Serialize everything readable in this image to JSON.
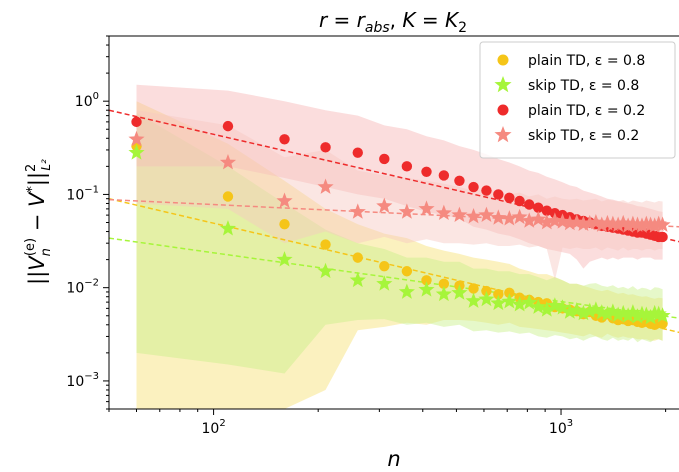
{
  "chart_data": {
    "type": "scatter",
    "title": "r = r_abs, K = K_2",
    "title_parts": {
      "lhs": "r",
      "eq1": " = ",
      "rhs_base": "r",
      "rhs_sub": "abs",
      "sep": ", ",
      "lhs2": "K",
      "eq2": " = ",
      "rhs2_base": "K",
      "rhs2_sub": "2"
    },
    "xlabel": "n",
    "ylabel_parts": {
      "pre": "||",
      "base": "V",
      "sub": "n",
      "sup": "(e)",
      "mid": " − ",
      "v": "V",
      "star": "*",
      "post": "||",
      "norm_sup": "2",
      "norm_sub": "L²"
    },
    "x_scale": "log",
    "y_scale": "log",
    "xlim": [
      50,
      2200
    ],
    "ylim": [
      0.0005,
      5
    ],
    "x_ticks": [
      {
        "value": 100,
        "base": "10",
        "exp": "2"
      },
      {
        "value": 1000,
        "base": "10",
        "exp": "3"
      }
    ],
    "y_ticks": [
      {
        "value": 0.001,
        "base": "10",
        "exp": "−3"
      },
      {
        "value": 0.01,
        "base": "10",
        "exp": "−2"
      },
      {
        "value": 0.1,
        "base": "10",
        "exp": "−1"
      },
      {
        "value": 1,
        "base": "10",
        "exp": "0"
      }
    ],
    "grid": false,
    "legend_position": "top-right",
    "series": [
      {
        "name": "plain TD, ε = 0.8",
        "marker": "circle",
        "color": "#f5c518",
        "band_color": "#f7e070",
        "x": [
          60,
          110,
          160,
          210,
          260,
          310,
          360,
          410,
          460,
          510,
          560,
          610,
          660,
          710,
          760,
          810,
          860,
          910,
          960,
          1010,
          1060,
          1110,
          1160,
          1210,
          1260,
          1310,
          1360,
          1410,
          1460,
          1510,
          1560,
          1610,
          1660,
          1710,
          1760,
          1810,
          1860,
          1910,
          1960
        ],
        "y": [
          0.33,
          0.095,
          0.048,
          0.029,
          0.021,
          0.017,
          0.015,
          0.012,
          0.011,
          0.0105,
          0.0098,
          0.0092,
          0.0085,
          0.0088,
          0.0078,
          0.0074,
          0.007,
          0.0068,
          0.0062,
          0.006,
          0.0058,
          0.0056,
          0.0052,
          0.0055,
          0.005,
          0.0048,
          0.0052,
          0.0047,
          0.0045,
          0.0046,
          0.0044,
          0.0045,
          0.0043,
          0.0042,
          0.0043,
          0.0041,
          0.004,
          0.0042,
          0.0041
        ],
        "band_lower": [
          0.0005,
          0.0005,
          0.0005,
          0.0008,
          0.0035,
          0.0038,
          0.0042,
          0.004,
          0.0045,
          0.0045,
          0.0044,
          0.0042,
          0.004,
          0.0042,
          0.0038,
          0.0037,
          0.0036,
          0.0035,
          0.0034,
          0.0033,
          0.0032,
          0.0031,
          0.003,
          0.0032,
          0.003,
          0.0029,
          0.0032,
          0.003,
          0.0029,
          0.003,
          0.0029,
          0.0029,
          0.0028,
          0.0028,
          0.0028,
          0.0027,
          0.0027,
          0.0028,
          0.0027
        ],
        "band_upper": [
          1.0,
          0.35,
          0.14,
          0.07,
          0.048,
          0.038,
          0.034,
          0.028,
          0.025,
          0.023,
          0.021,
          0.02,
          0.019,
          0.018,
          0.016,
          0.015,
          0.014,
          0.014,
          0.013,
          0.012,
          0.011,
          0.011,
          0.0105,
          0.01,
          0.0095,
          0.0092,
          0.0095,
          0.009,
          0.0086,
          0.0088,
          0.0084,
          0.0085,
          0.0082,
          0.008,
          0.0081,
          0.0078,
          0.0076,
          0.0078,
          0.0077
        ],
        "fit": {
          "x": [
            50,
            2200
          ],
          "y": [
            0.09,
            0.0033
          ]
        }
      },
      {
        "name": "skip TD, ε = 0.8",
        "marker": "star",
        "color": "#a6f53a",
        "band_color": "#c8f088",
        "x": [
          60,
          110,
          160,
          210,
          260,
          310,
          360,
          410,
          460,
          510,
          560,
          610,
          660,
          710,
          760,
          810,
          860,
          910,
          960,
          1010,
          1060,
          1110,
          1160,
          1210,
          1260,
          1310,
          1360,
          1410,
          1460,
          1510,
          1560,
          1610,
          1660,
          1710,
          1760,
          1810,
          1860,
          1910,
          1960
        ],
        "y": [
          0.28,
          0.043,
          0.02,
          0.015,
          0.012,
          0.011,
          0.009,
          0.0095,
          0.0085,
          0.0088,
          0.0072,
          0.0075,
          0.0068,
          0.0071,
          0.0066,
          0.0069,
          0.0062,
          0.0058,
          0.0064,
          0.0061,
          0.0055,
          0.0057,
          0.0053,
          0.0056,
          0.0058,
          0.0054,
          0.0052,
          0.0055,
          0.0051,
          0.0053,
          0.005,
          0.0054,
          0.0049,
          0.0052,
          0.0051,
          0.0048,
          0.0053,
          0.0052,
          0.005
        ],
        "band_lower": [
          0.002,
          0.0015,
          0.0012,
          0.004,
          0.0045,
          0.0046,
          0.004,
          0.0042,
          0.0038,
          0.004,
          0.0034,
          0.0035,
          0.0033,
          0.0034,
          0.0032,
          0.0033,
          0.003,
          0.0029,
          0.0031,
          0.003,
          0.0028,
          0.0029,
          0.0027,
          0.0029,
          0.003,
          0.0028,
          0.0027,
          0.0029,
          0.0027,
          0.0028,
          0.0027,
          0.0029,
          0.0026,
          0.0028,
          0.0027,
          0.0026,
          0.0028,
          0.0028,
          0.0027
        ],
        "band_upper": [
          0.75,
          0.2,
          0.08,
          0.042,
          0.03,
          0.026,
          0.021,
          0.021,
          0.019,
          0.019,
          0.016,
          0.016,
          0.015,
          0.015,
          0.014,
          0.014,
          0.013,
          0.012,
          0.013,
          0.012,
          0.011,
          0.011,
          0.0105,
          0.011,
          0.0112,
          0.0105,
          0.0102,
          0.0106,
          0.0099,
          0.0102,
          0.0097,
          0.0104,
          0.0095,
          0.01,
          0.0098,
          0.0094,
          0.0101,
          0.01,
          0.0096
        ],
        "fit": {
          "x": [
            50,
            2200
          ],
          "y": [
            0.034,
            0.0047
          ]
        }
      },
      {
        "name": "plain TD, ε = 0.2",
        "marker": "circle",
        "color": "#ee2b2b",
        "band_color": "#f7b3b3",
        "x": [
          60,
          110,
          160,
          210,
          260,
          310,
          360,
          410,
          460,
          510,
          560,
          610,
          660,
          710,
          760,
          810,
          860,
          910,
          960,
          1010,
          1060,
          1110,
          1160,
          1210,
          1260,
          1310,
          1360,
          1410,
          1460,
          1510,
          1560,
          1610,
          1660,
          1710,
          1760,
          1810,
          1860,
          1910,
          1960
        ],
        "y": [
          0.6,
          0.54,
          0.39,
          0.32,
          0.28,
          0.24,
          0.2,
          0.175,
          0.16,
          0.14,
          0.12,
          0.11,
          0.1,
          0.092,
          0.085,
          0.078,
          0.072,
          0.067,
          0.063,
          0.06,
          0.057,
          0.054,
          0.052,
          0.05,
          0.048,
          0.046,
          0.045,
          0.044,
          0.043,
          0.042,
          0.041,
          0.04,
          0.039,
          0.039,
          0.038,
          0.037,
          0.036,
          0.035,
          0.035
        ],
        "band_lower": [
          0.2,
          0.2,
          0.15,
          0.12,
          0.1,
          0.09,
          0.075,
          0.065,
          0.06,
          0.055,
          0.045,
          0.042,
          0.038,
          0.036,
          0.033,
          0.03,
          0.028,
          0.026,
          0.025,
          0.024,
          0.023,
          0.02,
          0.016,
          0.019,
          0.02,
          0.021,
          0.02,
          0.021,
          0.02,
          0.021,
          0.021,
          0.021,
          0.02,
          0.021,
          0.021,
          0.021,
          0.02,
          0.02,
          0.02
        ],
        "band_upper": [
          1.5,
          1.3,
          1.0,
          0.8,
          0.7,
          0.55,
          0.5,
          0.42,
          0.38,
          0.33,
          0.3,
          0.27,
          0.24,
          0.22,
          0.2,
          0.18,
          0.17,
          0.155,
          0.145,
          0.135,
          0.125,
          0.12,
          0.11,
          0.105,
          0.1,
          0.095,
          0.09,
          0.088,
          0.085,
          0.082,
          0.08,
          0.078,
          0.075,
          0.074,
          0.072,
          0.07,
          0.068,
          0.066,
          0.065
        ],
        "fit": {
          "x": [
            50,
            2200
          ],
          "y": [
            0.8,
            0.031
          ]
        }
      },
      {
        "name": "skip TD, ε = 0.2",
        "marker": "star",
        "color": "#f58a80",
        "band_color": "#f7c8c0",
        "x": [
          60,
          110,
          160,
          210,
          260,
          310,
          360,
          410,
          460,
          510,
          560,
          610,
          660,
          710,
          760,
          810,
          860,
          910,
          960,
          1010,
          1060,
          1110,
          1160,
          1210,
          1260,
          1310,
          1360,
          1410,
          1460,
          1510,
          1560,
          1610,
          1660,
          1710,
          1760,
          1810,
          1860,
          1910,
          1960
        ],
        "y": [
          0.39,
          0.22,
          0.085,
          0.12,
          0.065,
          0.075,
          0.065,
          0.07,
          0.063,
          0.06,
          0.058,
          0.06,
          0.056,
          0.055,
          0.057,
          0.052,
          0.054,
          0.05,
          0.052,
          0.051,
          0.049,
          0.05,
          0.048,
          0.049,
          0.05,
          0.047,
          0.049,
          0.048,
          0.047,
          0.049,
          0.046,
          0.048,
          0.047,
          0.046,
          0.048,
          0.047,
          0.046,
          0.048,
          0.047
        ],
        "band_lower": [
          0.08,
          0.07,
          0.03,
          0.04,
          0.03,
          0.035,
          0.03,
          0.033,
          0.03,
          0.03,
          0.029,
          0.03,
          0.028,
          0.028,
          0.029,
          0.027,
          0.028,
          0.026,
          0.012,
          0.027,
          0.026,
          0.027,
          0.026,
          0.026,
          0.027,
          0.025,
          0.027,
          0.026,
          0.025,
          0.027,
          0.025,
          0.026,
          0.026,
          0.025,
          0.026,
          0.026,
          0.025,
          0.026,
          0.026
        ],
        "band_upper": [
          0.8,
          0.55,
          0.25,
          0.3,
          0.18,
          0.16,
          0.15,
          0.14,
          0.13,
          0.12,
          0.11,
          0.115,
          0.105,
          0.1,
          0.105,
          0.095,
          0.1,
          0.09,
          0.095,
          0.09,
          0.088,
          0.09,
          0.086,
          0.088,
          0.09,
          0.084,
          0.088,
          0.086,
          0.084,
          0.087,
          0.082,
          0.086,
          0.084,
          0.082,
          0.086,
          0.084,
          0.082,
          0.085,
          0.084
        ],
        "fit": {
          "x": [
            50,
            2200
          ],
          "y": [
            0.088,
            0.045
          ]
        }
      }
    ]
  }
}
